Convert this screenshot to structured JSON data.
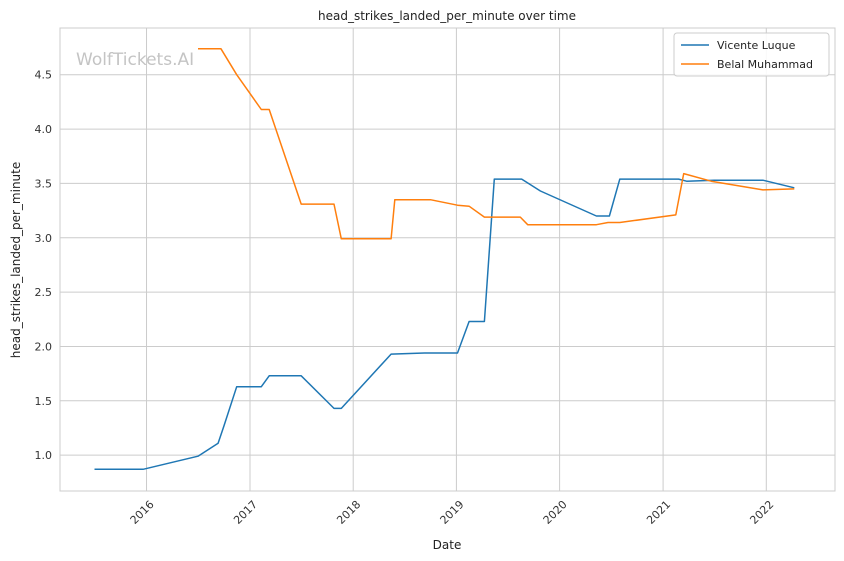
{
  "chart_data": {
    "type": "line",
    "title": "head_strikes_landed_per_minute over time",
    "xlabel": "Date",
    "ylabel": "head_strikes_landed_per_minute",
    "watermark": "WolfTickets.AI",
    "xlim": [
      "2015-03-01",
      "2022-09-01"
    ],
    "ylim": [
      0.67,
      4.93
    ],
    "grid": true,
    "legend_position": "top-right",
    "x_ticks": [
      {
        "date": "2016-01-01",
        "label": "2016"
      },
      {
        "date": "2017-01-01",
        "label": "2017"
      },
      {
        "date": "2018-01-01",
        "label": "2018"
      },
      {
        "date": "2019-01-01",
        "label": "2019"
      },
      {
        "date": "2020-01-01",
        "label": "2020"
      },
      {
        "date": "2021-01-01",
        "label": "2021"
      },
      {
        "date": "2022-01-01",
        "label": "2022"
      }
    ],
    "y_ticks": [
      {
        "value": 1.0,
        "label": "1.0"
      },
      {
        "value": 1.5,
        "label": "1.5"
      },
      {
        "value": 2.0,
        "label": "2.0"
      },
      {
        "value": 2.5,
        "label": "2.5"
      },
      {
        "value": 3.0,
        "label": "3.0"
      },
      {
        "value": 3.5,
        "label": "3.5"
      },
      {
        "value": 4.0,
        "label": "4.0"
      },
      {
        "value": 4.5,
        "label": "4.5"
      }
    ],
    "series": [
      {
        "name": "Vicente Luque",
        "color": "#1f77b4",
        "points": [
          {
            "x": "2015-07-01",
            "y": 0.87
          },
          {
            "x": "2015-12-20",
            "y": 0.87
          },
          {
            "x": "2016-07-01",
            "y": 0.99
          },
          {
            "x": "2016-09-10",
            "y": 1.11
          },
          {
            "x": "2016-10-01",
            "y": 1.27
          },
          {
            "x": "2016-11-15",
            "y": 1.63
          },
          {
            "x": "2017-02-10",
            "y": 1.63
          },
          {
            "x": "2017-03-10",
            "y": 1.73
          },
          {
            "x": "2017-07-01",
            "y": 1.73
          },
          {
            "x": "2017-10-25",
            "y": 1.43
          },
          {
            "x": "2017-11-20",
            "y": 1.43
          },
          {
            "x": "2018-05-15",
            "y": 1.93
          },
          {
            "x": "2018-09-10",
            "y": 1.94
          },
          {
            "x": "2019-01-05",
            "y": 1.94
          },
          {
            "x": "2019-02-15",
            "y": 2.23
          },
          {
            "x": "2019-04-10",
            "y": 2.23
          },
          {
            "x": "2019-05-15",
            "y": 3.54
          },
          {
            "x": "2019-08-20",
            "y": 3.54
          },
          {
            "x": "2019-10-25",
            "y": 3.43
          },
          {
            "x": "2020-05-10",
            "y": 3.2
          },
          {
            "x": "2020-06-25",
            "y": 3.2
          },
          {
            "x": "2020-08-01",
            "y": 3.54
          },
          {
            "x": "2021-02-25",
            "y": 3.54
          },
          {
            "x": "2021-03-25",
            "y": 3.52
          },
          {
            "x": "2021-07-01",
            "y": 3.53
          },
          {
            "x": "2021-12-20",
            "y": 3.53
          },
          {
            "x": "2022-04-10",
            "y": 3.46
          }
        ]
      },
      {
        "name": "Belal Muhammad",
        "color": "#ff7f0e",
        "points": [
          {
            "x": "2016-07-01",
            "y": 4.74
          },
          {
            "x": "2016-09-20",
            "y": 4.74
          },
          {
            "x": "2016-11-15",
            "y": 4.5
          },
          {
            "x": "2017-02-10",
            "y": 4.18
          },
          {
            "x": "2017-03-10",
            "y": 4.18
          },
          {
            "x": "2017-07-01",
            "y": 3.31
          },
          {
            "x": "2017-10-25",
            "y": 3.31
          },
          {
            "x": "2017-11-20",
            "y": 2.99
          },
          {
            "x": "2018-05-15",
            "y": 2.99
          },
          {
            "x": "2018-05-28",
            "y": 3.35
          },
          {
            "x": "2018-10-01",
            "y": 3.35
          },
          {
            "x": "2019-01-05",
            "y": 3.3
          },
          {
            "x": "2019-02-15",
            "y": 3.29
          },
          {
            "x": "2019-04-10",
            "y": 3.19
          },
          {
            "x": "2019-08-15",
            "y": 3.19
          },
          {
            "x": "2019-09-10",
            "y": 3.12
          },
          {
            "x": "2020-05-10",
            "y": 3.12
          },
          {
            "x": "2020-06-20",
            "y": 3.14
          },
          {
            "x": "2020-08-01",
            "y": 3.14
          },
          {
            "x": "2021-02-15",
            "y": 3.21
          },
          {
            "x": "2021-03-15",
            "y": 3.59
          },
          {
            "x": "2021-06-20",
            "y": 3.52
          },
          {
            "x": "2021-12-20",
            "y": 3.44
          },
          {
            "x": "2022-04-10",
            "y": 3.45
          }
        ]
      }
    ]
  }
}
